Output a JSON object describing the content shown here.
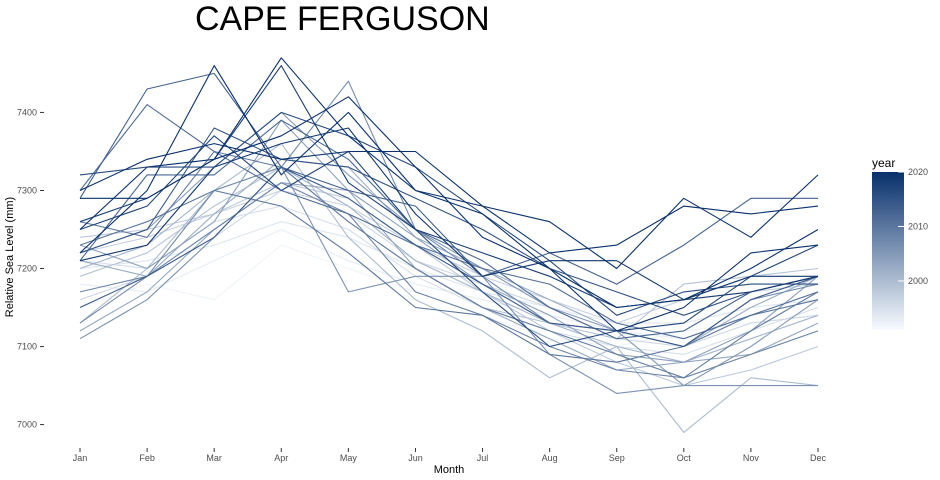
{
  "chart_data": {
    "type": "line",
    "title": "CAPE FERGUSON",
    "xlabel": "Month",
    "ylabel": "Relative Sea Level (mm)",
    "categories": [
      "Jan",
      "Feb",
      "Mar",
      "Apr",
      "May",
      "Jun",
      "Jul",
      "Aug",
      "Sep",
      "Oct",
      "Nov",
      "Dec"
    ],
    "ylim": [
      6970,
      7480
    ],
    "yticks": [
      7000,
      7100,
      7200,
      7300,
      7400
    ],
    "grid": false,
    "legend": {
      "title": "year",
      "placement": "right",
      "ticks": [
        2000,
        2010,
        2020
      ],
      "range": [
        1991,
        2020
      ],
      "color_low": "#f7fbff",
      "color_high": "#08306b"
    },
    "series": [
      {
        "year": 1992,
        "values": [
          7150,
          7180,
          7160,
          7230,
          7200,
          7170,
          7140,
          7110,
          7100,
          7120,
          7130,
          7140
        ]
      },
      {
        "year": 1993,
        "values": [
          7180,
          7170,
          7210,
          7250,
          7210,
          7180,
          7160,
          7140,
          7120,
          7110,
          7140,
          7170
        ]
      },
      {
        "year": 1994,
        "values": [
          7200,
          7210,
          7230,
          7260,
          7240,
          7200,
          7170,
          7150,
          7130,
          7130,
          7150,
          7160
        ]
      },
      {
        "year": 1995,
        "values": [
          7210,
          7200,
          7260,
          7280,
          7250,
          7190,
          7150,
          7120,
          7100,
          7090,
          7120,
          7150
        ]
      },
      {
        "year": 1996,
        "values": [
          7160,
          7190,
          7240,
          7300,
          7270,
          7210,
          7180,
          7150,
          7110,
          7100,
          7130,
          7140
        ]
      },
      {
        "year": 1997,
        "values": [
          7220,
          7240,
          7270,
          7300,
          7280,
          7230,
          7190,
          7160,
          7130,
          7160,
          7170,
          7180
        ]
      },
      {
        "year": 1998,
        "values": [
          7240,
          7250,
          7270,
          7310,
          7290,
          7230,
          7170,
          7120,
          7080,
          7050,
          7070,
          7100
        ]
      },
      {
        "year": 1999,
        "values": [
          7190,
          7220,
          7280,
          7330,
          7260,
          7200,
          7150,
          7130,
          7110,
          7180,
          7190,
          7200
        ]
      },
      {
        "year": 2000,
        "values": [
          7130,
          7200,
          7300,
          7360,
          7240,
          7160,
          7120,
          7060,
          7100,
          6990,
          7060,
          7050
        ]
      },
      {
        "year": 2001,
        "values": [
          7200,
          7230,
          7300,
          7330,
          7280,
          7210,
          7170,
          7130,
          7100,
          7080,
          7110,
          7140
        ]
      },
      {
        "year": 2002,
        "values": [
          7210,
          7190,
          7270,
          7340,
          7330,
          7240,
          7200,
          7160,
          7120,
          7100,
          7150,
          7190
        ]
      },
      {
        "year": 2003,
        "values": [
          7120,
          7170,
          7250,
          7310,
          7300,
          7200,
          7150,
          7110,
          7070,
          7080,
          7090,
          7130
        ]
      },
      {
        "year": 2004,
        "values": [
          7230,
          7200,
          7260,
          7390,
          7300,
          7240,
          7180,
          7140,
          7090,
          7080,
          7120,
          7190
        ]
      },
      {
        "year": 2005,
        "values": [
          7220,
          7250,
          7330,
          7400,
          7320,
          7250,
          7200,
          7150,
          7120,
          7050,
          7100,
          7160
        ]
      },
      {
        "year": 2006,
        "values": [
          7110,
          7160,
          7240,
          7330,
          7170,
          7190,
          7190,
          7090,
          7040,
          7050,
          7050,
          7050
        ]
      },
      {
        "year": 2007,
        "values": [
          7130,
          7190,
          7300,
          7330,
          7440,
          7250,
          7190,
          7130,
          7120,
          7100,
          7160,
          7180
        ]
      },
      {
        "year": 2008,
        "values": [
          7170,
          7190,
          7250,
          7310,
          7270,
          7170,
          7140,
          7100,
          7070,
          7060,
          7090,
          7120
        ]
      },
      {
        "year": 2009,
        "values": [
          7260,
          7240,
          7350,
          7330,
          7260,
          7200,
          7150,
          7120,
          7090,
          7060,
          7120,
          7170
        ]
      },
      {
        "year": 2010,
        "values": [
          7230,
          7260,
          7300,
          7280,
          7220,
          7150,
          7140,
          7090,
          7080,
          7100,
          7140,
          7160
        ]
      },
      {
        "year": 2011,
        "values": [
          7300,
          7410,
          7350,
          7300,
          7270,
          7230,
          7200,
          7180,
          7130,
          7110,
          7140,
          7170
        ]
      },
      {
        "year": 2012,
        "values": [
          7210,
          7320,
          7320,
          7390,
          7340,
          7250,
          7210,
          7150,
          7110,
          7120,
          7170,
          7190
        ]
      },
      {
        "year": 2013,
        "values": [
          7290,
          7430,
          7450,
          7330,
          7300,
          7280,
          7190,
          7220,
          7180,
          7230,
          7290,
          7290
        ]
      },
      {
        "year": 2014,
        "values": [
          7150,
          7190,
          7240,
          7330,
          7290,
          7230,
          7180,
          7130,
          7120,
          7100,
          7160,
          7190
        ]
      },
      {
        "year": 2015,
        "values": [
          7220,
          7250,
          7380,
          7340,
          7330,
          7290,
          7250,
          7200,
          7170,
          7140,
          7170,
          7190
        ]
      },
      {
        "year": 2016,
        "values": [
          7320,
          7330,
          7330,
          7400,
          7370,
          7330,
          7270,
          7210,
          7140,
          7170,
          7180,
          7180
        ]
      },
      {
        "year": 2017,
        "values": [
          7250,
          7280,
          7370,
          7300,
          7350,
          7250,
          7170,
          7100,
          7120,
          7130,
          7190,
          7230
        ]
      },
      {
        "year": 2018,
        "values": [
          7260,
          7290,
          7340,
          7460,
          7310,
          7250,
          7220,
          7190,
          7150,
          7160,
          7170,
          7190
        ]
      },
      {
        "year": 2019,
        "values": [
          7210,
          7230,
          7330,
          7360,
          7380,
          7270,
          7190,
          7210,
          7210,
          7160,
          7190,
          7190
        ]
      },
      {
        "year": 2020,
        "values": [
          7220,
          7300,
          7460,
          7320,
          7400,
          7300,
          7280,
          7220,
          7230,
          7280,
          7270,
          7280
        ]
      },
      {
        "year": 2021,
        "values": [
          7250,
          7330,
          7340,
          7470,
          7370,
          7300,
          7270,
          7200,
          7150,
          7160,
          7200,
          7250
        ]
      },
      {
        "year": 2022,
        "values": [
          7300,
          7340,
          7360,
          7340,
          7350,
          7350,
          7280,
          7260,
          7200,
          7290,
          7240,
          7320
        ]
      },
      {
        "year": 2023,
        "values": [
          7290,
          7290,
          7340,
          7370,
          7420,
          7330,
          7240,
          7200,
          7120,
          7150,
          7220,
          7230
        ]
      }
    ]
  }
}
